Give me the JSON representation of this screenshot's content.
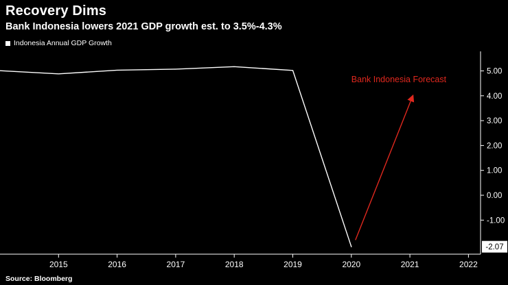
{
  "header": {
    "title": "Recovery Dims",
    "subtitle": "Bank Indonesia lowers 2021 GDP growth est. to 3.5%-4.3%"
  },
  "legend": {
    "label": "Indonesia Annual GDP Growth"
  },
  "footer": {
    "source": "Source: Bloomberg"
  },
  "colors": {
    "background": "#000000",
    "line": "#ffffff",
    "axis": "#ffffff",
    "text": "#ffffff",
    "annotation_red": "#e0281e",
    "last_label_bg": "#ffffff",
    "last_label_text": "#000000"
  },
  "chart_data": {
    "type": "line",
    "title": "Recovery Dims",
    "subtitle": "Bank Indonesia lowers 2021 GDP growth est. to 3.5%-4.3%",
    "xlabel": "",
    "ylabel": "",
    "grid": false,
    "legend_position": "top-left",
    "xlim": [
      2014,
      2022.3
    ],
    "ylim": [
      -2.4,
      5.6
    ],
    "series": [
      {
        "name": "Indonesia Annual GDP Growth",
        "color": "#ffffff",
        "x": [
          2014,
          2015,
          2016,
          2017,
          2018,
          2019,
          2020
        ],
        "values": [
          5.01,
          4.88,
          5.03,
          5.07,
          5.17,
          5.02,
          -2.07
        ]
      }
    ],
    "x_ticks": [
      {
        "value": 2015,
        "label": "2015"
      },
      {
        "value": 2016,
        "label": "2016"
      },
      {
        "value": 2017,
        "label": "2017"
      },
      {
        "value": 2018,
        "label": "2018"
      },
      {
        "value": 2019,
        "label": "2019"
      },
      {
        "value": 2020,
        "label": "2020"
      },
      {
        "value": 2021,
        "label": "2021"
      },
      {
        "value": 2022,
        "label": "2022"
      }
    ],
    "y_ticks": [
      {
        "value": 5,
        "label": "5.00"
      },
      {
        "value": 4,
        "label": "4.00"
      },
      {
        "value": 3,
        "label": "3.00"
      },
      {
        "value": 2,
        "label": "2.00"
      },
      {
        "value": 1,
        "label": "1.00"
      },
      {
        "value": 0,
        "label": "0.00"
      },
      {
        "value": -1,
        "label": "-1.00"
      }
    ],
    "last_point": {
      "x": 2020,
      "value": -2.07,
      "label": "-2.07"
    },
    "annotation": {
      "text": "Bank Indonesia Forecast",
      "color": "#e0281e",
      "arrow_from": {
        "x": 2020.07,
        "y": -1.8
      },
      "arrow_to": {
        "x": 2021.05,
        "y": 4.0
      },
      "label_pos": {
        "x": 2020.0,
        "y": 4.55
      }
    }
  }
}
